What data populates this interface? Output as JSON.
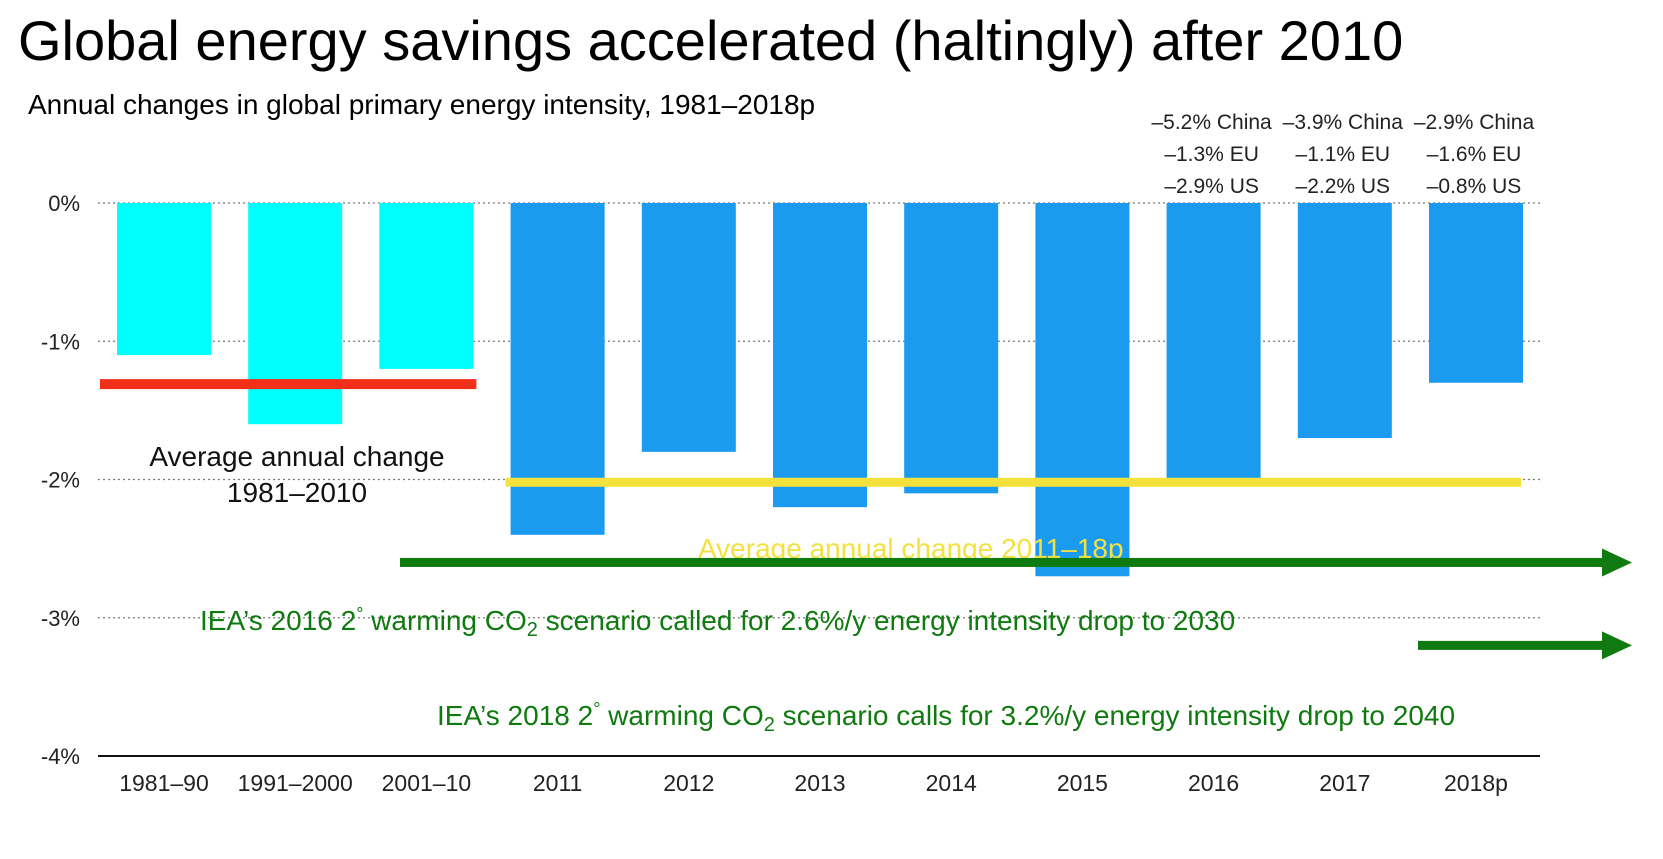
{
  "title": "Global energy savings accelerated (haltingly) after 2010",
  "subtitle": "Annual changes in global primary energy intensity, 1981–2018p",
  "colors": {
    "pre2010": "#00ffff",
    "post2010": "#1a9bf0",
    "avg_pre": "#f2301a",
    "avg_post": "#f5e13c",
    "iea": "#0f7a0f",
    "grid": "#777777"
  },
  "chart_data": {
    "type": "bar",
    "categories": [
      "1981–90",
      "1991–2000",
      "2001–10",
      "2011",
      "2012",
      "2013",
      "2014",
      "2015",
      "2016",
      "2017",
      "2018p"
    ],
    "values": [
      -1.1,
      -1.6,
      -1.2,
      -2.4,
      -1.8,
      -2.2,
      -2.1,
      -2.7,
      -2.0,
      -1.7,
      -1.3
    ],
    "bar_color_groups": [
      "pre2010",
      "pre2010",
      "pre2010",
      "post2010",
      "post2010",
      "post2010",
      "post2010",
      "post2010",
      "post2010",
      "post2010",
      "post2010"
    ],
    "ylim": [
      -4,
      0
    ],
    "yticks": [
      {
        "value": 0,
        "label": "0%"
      },
      {
        "value": -1,
        "label": "-1%"
      },
      {
        "value": -2,
        "label": "-2%"
      },
      {
        "value": -3,
        "label": "-3%"
      },
      {
        "value": -4,
        "label": "-4%"
      }
    ],
    "grid": "dotted horizontal",
    "averages": [
      {
        "label_line1": "Average annual change",
        "label_line2": "1981–2010",
        "value": -1.31,
        "from_category": 0,
        "to_category": 2
      },
      {
        "label": "Average annual change 2011–18p",
        "value": -2.02,
        "from_category": 3,
        "to_category": 10
      }
    ],
    "scenarios": [
      {
        "label_prefix": "IEA’s 2016 2",
        "label_suffix": " warming CO",
        "label_sub": "2",
        "label_rest": " scenario called for 2.6%/y energy intensity drop to 2030",
        "value": -2.6,
        "from_category": 2
      },
      {
        "label_prefix": "IEA’s 2018 2",
        "label_suffix": " warming CO",
        "label_sub": "2",
        "label_rest": " scenario calls for 3.2%/y energy intensity drop to 2040",
        "value": -3.2,
        "from_category": 9
      }
    ],
    "regional_notes": [
      {
        "category": "2016",
        "lines": [
          "–5.2% China",
          "–1.3% EU",
          "–2.9% US"
        ]
      },
      {
        "category": "2017",
        "lines": [
          "–3.9% China",
          "–1.1% EU",
          "–2.2% US"
        ]
      },
      {
        "category": "2018p",
        "lines": [
          "–2.9% China",
          "–1.6% EU",
          "–0.8% US"
        ]
      }
    ]
  }
}
